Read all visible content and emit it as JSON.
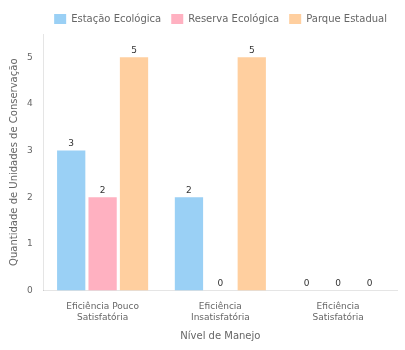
{
  "chart_data": {
    "type": "bar",
    "categories": [
      "Eficiência Pouco\nSatisfatória",
      "Eficiência\nInsatisfatória",
      "Eficiência\nSatisfatória"
    ],
    "series": [
      {
        "name": "Estação Ecológica",
        "values": [
          3,
          2,
          0
        ]
      },
      {
        "name": "Reserva Ecológica",
        "values": [
          2,
          0,
          0
        ]
      },
      {
        "name": "Parque Estadual",
        "values": [
          5,
          5,
          0
        ]
      }
    ],
    "xlabel": "Nível de Manejo",
    "ylabel": "Quantidade de Unidades de Conservação",
    "ylim": [
      0,
      5.5
    ],
    "yticks": [
      0,
      1,
      2,
      3,
      4,
      5
    ],
    "grid": false,
    "legend": "upper right",
    "data_labels": true
  }
}
